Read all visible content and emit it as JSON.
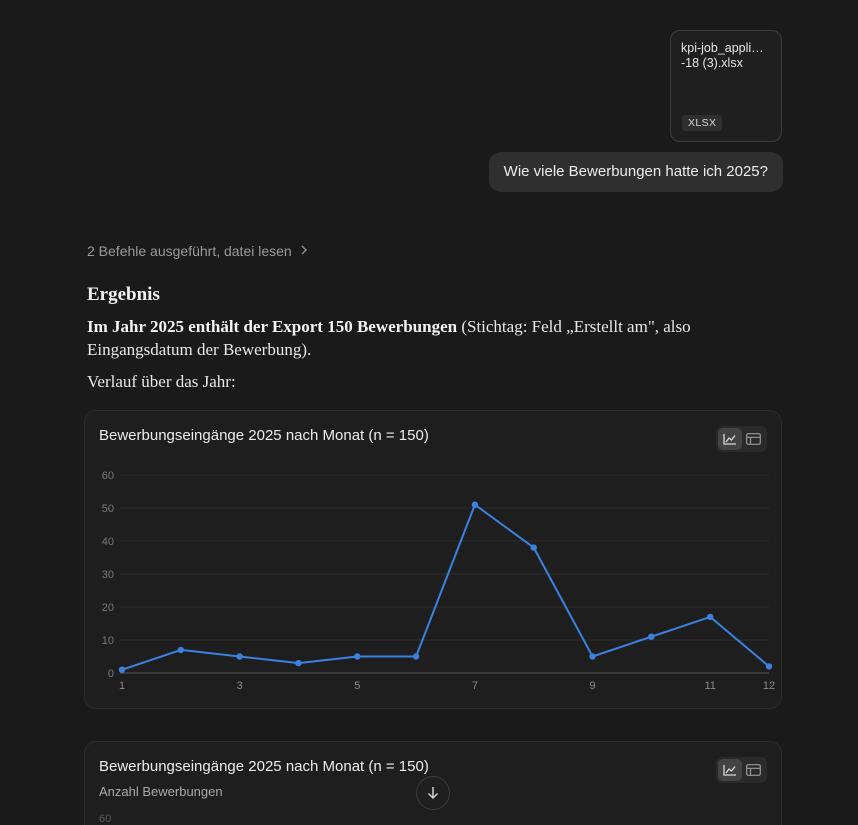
{
  "attachment": {
    "name_line1": "kpi-job_appli…",
    "name_line2": "-18 (3).xlsx",
    "type": "XLSX"
  },
  "user_message": "Wie viele Bewerbungen hatte ich 2025?",
  "tool_summary": "2 Befehle ausgeführt, datei lesen",
  "answer": {
    "heading": "Ergebnis",
    "bold": "Im Jahr 2025 enthält der Export 150 Bewerbungen",
    "rest": " (Stichtag: Feld „Erstellt am\", also Eingangsdatum der Bewerbung).",
    "intro": "Verlauf über das Jahr:"
  },
  "charts": [
    {
      "title": "Bewerbungseingänge 2025 nach Monat (n = 150)",
      "view_icons": [
        "line-chart-icon",
        "table-icon"
      ]
    },
    {
      "title": "Bewerbungseingänge 2025 nach Monat (n = 150)",
      "subtitle": "Anzahl Bewerbungen",
      "partial_tick": "60",
      "view_icons": [
        "line-chart-icon",
        "table-icon"
      ]
    }
  ],
  "chart_data": {
    "type": "line",
    "title": "Bewerbungseingänge 2025 nach Monat (n = 150)",
    "x": [
      1,
      2,
      3,
      4,
      5,
      6,
      7,
      8,
      9,
      10,
      11,
      12
    ],
    "x_tick_labels": [
      "1",
      "3",
      "5",
      "7",
      "9",
      "11",
      "12"
    ],
    "y": [
      1,
      7,
      5,
      3,
      5,
      5,
      51,
      38,
      5,
      11,
      17,
      2
    ],
    "ylim": [
      0,
      60
    ],
    "y_ticks": [
      0,
      10,
      20,
      30,
      40,
      50,
      60
    ],
    "grid": true,
    "line_color": "#3b82e0"
  },
  "colors": {
    "background": "#1a1a1a",
    "accent": "#3b82e0"
  },
  "scroll_button_icon": "arrow-down-icon"
}
